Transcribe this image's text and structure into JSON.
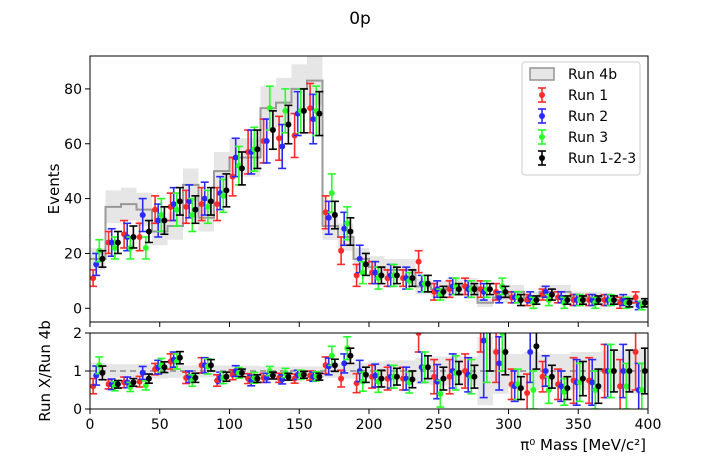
{
  "chart_data": {
    "type": "scatter",
    "title": "0p",
    "xlabel": "π⁰ Mass [MeV/c²]",
    "xlim": [
      0,
      400
    ],
    "x_ticks": [
      "0",
      "50",
      "100",
      "150",
      "200",
      "250",
      "300",
      "350",
      "400"
    ],
    "legend_position": "top-right",
    "top_panel": {
      "ylabel": "Events",
      "ylim": [
        -5,
        92
      ],
      "y_ticks": [
        "0",
        "20",
        "40",
        "60",
        "80"
      ],
      "reference": {
        "name": "Run 4b",
        "color": "#999999",
        "style": "step",
        "values": [
          18,
          37,
          38,
          36,
          28,
          30,
          45,
          33,
          50,
          55,
          55,
          73,
          75,
          80,
          83,
          30,
          26,
          18,
          15,
          14,
          14,
          8,
          7,
          8,
          8,
          2,
          4,
          6,
          4,
          6,
          6,
          4,
          4,
          3,
          3,
          2
        ],
        "band": [
          4,
          6,
          6,
          6,
          5,
          5,
          6,
          5,
          7,
          7,
          7,
          8,
          9,
          9,
          9,
          5,
          5,
          4,
          4,
          4,
          4,
          3,
          3,
          3,
          3,
          1.5,
          2,
          2.5,
          2,
          2.5,
          2.5,
          2,
          2,
          2,
          2,
          1.5
        ]
      },
      "series": [
        {
          "name": "Run 1",
          "color": "#ff2a2a",
          "values": [
            11,
            24,
            27,
            26,
            36,
            37,
            37,
            38,
            38,
            48,
            57,
            61,
            62,
            63,
            73,
            35,
            21,
            12,
            13,
            11,
            11,
            17,
            6,
            7,
            8,
            7,
            6,
            4,
            3,
            5,
            4,
            3,
            3,
            3,
            2,
            4
          ],
          "errors": [
            3,
            4,
            5,
            5,
            5,
            5,
            6,
            6,
            6,
            7,
            8,
            8,
            8,
            8,
            9,
            6,
            5,
            4,
            4,
            3,
            3,
            4,
            3,
            3,
            3,
            3,
            3,
            2,
            2,
            2,
            2,
            2,
            2,
            2,
            2,
            2
          ]
        },
        {
          "name": "Run 2",
          "color": "#2a2aff",
          "values": [
            16,
            24,
            26,
            34,
            32,
            38,
            39,
            40,
            42,
            55,
            57,
            61,
            59,
            71,
            69,
            33,
            29,
            18,
            13,
            12,
            11,
            9,
            7,
            8,
            7,
            6,
            4,
            4,
            4,
            6,
            4,
            3,
            3,
            3,
            3,
            1
          ],
          "errors": [
            4,
            5,
            5,
            6,
            6,
            6,
            6,
            6,
            6,
            7,
            8,
            8,
            8,
            8,
            9,
            6,
            6,
            5,
            4,
            4,
            4,
            3,
            3,
            3,
            3,
            3,
            2,
            2,
            2,
            2,
            2,
            2,
            2,
            2,
            2,
            1.5
          ]
        },
        {
          "name": "Run 3",
          "color": "#2aff2a",
          "values": [
            21,
            22,
            22,
            22,
            34,
            36,
            34,
            37,
            41,
            52,
            58,
            73,
            72,
            72,
            72,
            42,
            31,
            13,
            11,
            12,
            10,
            9,
            5,
            8,
            7,
            7,
            8,
            4,
            2,
            3,
            2,
            3,
            2,
            3,
            2,
            1
          ],
          "errors": [
            4,
            4,
            4,
            4,
            6,
            6,
            6,
            6,
            6,
            7,
            8,
            8,
            8,
            8,
            9,
            7,
            6,
            4,
            4,
            4,
            3,
            3,
            2,
            3,
            3,
            3,
            3,
            2,
            2,
            2,
            2,
            2,
            2,
            2,
            2,
            1.5
          ]
        },
        {
          "name": "Run 1-2-3",
          "color": "#000000",
          "values": [
            18,
            24,
            26,
            28,
            32,
            39,
            36,
            39,
            43,
            51,
            58,
            65,
            67,
            72,
            71,
            34,
            28,
            16,
            12,
            12,
            11,
            9,
            6,
            7,
            7,
            7,
            6,
            3,
            3,
            5,
            3,
            3,
            3,
            3,
            2,
            2
          ],
          "errors": [
            3,
            4,
            4,
            4,
            5,
            5,
            5,
            5,
            6,
            6,
            7,
            7,
            7,
            8,
            8,
            5,
            5,
            4,
            3,
            3,
            3,
            3,
            2,
            2,
            2,
            2,
            2,
            2,
            1.5,
            2,
            1.5,
            1.5,
            1.5,
            1.5,
            1.5,
            1.5
          ]
        }
      ]
    },
    "bottom_panel": {
      "ylabel": "Run X/Run 4b",
      "ylim": [
        0,
        2
      ],
      "y_ticks": [
        "0",
        "1",
        "2"
      ],
      "reference_line": 1,
      "band": [
        0.22,
        0.18,
        0.18,
        0.18,
        0.2,
        0.18,
        0.15,
        0.17,
        0.15,
        0.14,
        0.14,
        0.12,
        0.12,
        0.12,
        0.12,
        0.18,
        0.2,
        0.22,
        0.25,
        0.28,
        0.28,
        0.35,
        0.38,
        0.38,
        0.38,
        0.9,
        0.6,
        0.45,
        0.5,
        0.45,
        0.45,
        0.5,
        0.5,
        0.55,
        0.55,
        0.6
      ],
      "series": [
        {
          "name": "Run 1",
          "color": "#ff2a2a",
          "values": [
            0.6,
            0.65,
            0.7,
            0.72,
            1.05,
            1.25,
            0.82,
            1.15,
            0.75,
            0.9,
            0.8,
            0.82,
            0.82,
            0.8,
            0.88,
            1.15,
            0.8,
            0.68,
            0.85,
            0.8,
            0.8,
            2.0,
            0.85,
            0.85,
            1.0,
            3.5,
            1.5,
            0.65,
            0.42,
            0.85,
            0.65,
            0.75,
            0.75,
            1.0,
            0.6,
            1.5
          ],
          "errors": [
            0.2,
            0.12,
            0.14,
            0.14,
            0.15,
            0.2,
            0.15,
            0.2,
            0.15,
            0.13,
            0.13,
            0.12,
            0.12,
            0.12,
            0.12,
            0.22,
            0.22,
            0.25,
            0.3,
            0.3,
            0.3,
            0.5,
            0.45,
            0.45,
            0.45,
            2.0,
            0.8,
            0.4,
            0.5,
            0.4,
            0.4,
            0.6,
            0.6,
            0.7,
            0.7,
            1.0
          ]
        },
        {
          "name": "Run 2",
          "color": "#2a2aff",
          "values": [
            0.88,
            0.65,
            0.7,
            0.95,
            1.1,
            1.3,
            0.85,
            1.15,
            0.82,
            1.0,
            0.75,
            0.82,
            0.78,
            0.9,
            0.85,
            1.12,
            1.2,
            1.0,
            0.88,
            0.85,
            0.8,
            1.1,
            0.72,
            1.0,
            0.9,
            1.8,
            1.2,
            0.6,
            1.5,
            1.0,
            0.6,
            0.7,
            0.7,
            1.0,
            1.0,
            0.5
          ],
          "errors": [
            0.25,
            0.14,
            0.14,
            0.17,
            0.18,
            0.2,
            0.15,
            0.2,
            0.15,
            0.14,
            0.14,
            0.12,
            0.12,
            0.12,
            0.12,
            0.22,
            0.25,
            0.28,
            0.3,
            0.3,
            0.3,
            0.4,
            0.45,
            0.45,
            0.45,
            1.5,
            0.7,
            0.4,
            0.8,
            0.4,
            0.4,
            0.6,
            0.6,
            0.7,
            0.7,
            0.7
          ]
        },
        {
          "name": "Run 3",
          "color": "#2aff2a",
          "values": [
            1.15,
            0.6,
            0.58,
            0.62,
            1.15,
            1.25,
            0.75,
            1.12,
            0.82,
            0.95,
            0.82,
            1.0,
            0.95,
            0.9,
            0.86,
            1.4,
            1.6,
            0.72,
            0.72,
            0.85,
            0.7,
            1.1,
            0.4,
            0.95,
            0.85,
            2.2,
            2.0,
            0.65,
            0.5,
            0.5,
            0.45,
            0.7,
            0.5,
            1.0,
            0.6,
            0.5
          ],
          "errors": [
            0.22,
            0.12,
            0.12,
            0.12,
            0.18,
            0.2,
            0.15,
            0.2,
            0.15,
            0.14,
            0.14,
            0.12,
            0.12,
            0.12,
            0.12,
            0.25,
            0.3,
            0.25,
            0.28,
            0.3,
            0.28,
            0.4,
            0.35,
            0.45,
            0.45,
            1.5,
            1.0,
            0.4,
            0.5,
            0.35,
            0.35,
            0.5,
            0.5,
            0.7,
            0.6,
            0.7
          ]
        },
        {
          "name": "Run 1-2-3",
          "color": "#000000",
          "values": [
            0.95,
            0.65,
            0.7,
            0.8,
            1.1,
            1.35,
            0.82,
            1.15,
            0.85,
            0.95,
            0.8,
            0.88,
            0.85,
            0.9,
            0.85,
            1.15,
            1.4,
            0.9,
            0.8,
            0.85,
            0.78,
            1.1,
            0.8,
            0.95,
            0.85,
            2.2,
            1.5,
            0.55,
            1.65,
            0.85,
            0.55,
            0.8,
            0.6,
            1.0,
            1.0,
            1.0
          ],
          "errors": [
            0.18,
            0.1,
            0.1,
            0.12,
            0.14,
            0.16,
            0.12,
            0.15,
            0.12,
            0.1,
            0.1,
            0.09,
            0.09,
            0.09,
            0.09,
            0.16,
            0.2,
            0.2,
            0.22,
            0.22,
            0.22,
            0.3,
            0.3,
            0.3,
            0.3,
            1.2,
            0.6,
            0.3,
            0.6,
            0.3,
            0.3,
            0.45,
            0.45,
            0.55,
            0.55,
            0.6
          ]
        }
      ]
    }
  }
}
